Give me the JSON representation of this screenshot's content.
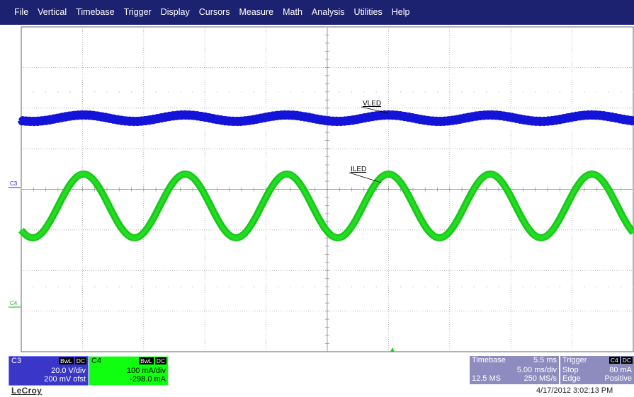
{
  "menu": [
    "File",
    "Vertical",
    "Timebase",
    "Trigger",
    "Display",
    "Cursors",
    "Measure",
    "Math",
    "Analysis",
    "Utilities",
    "Help"
  ],
  "traces": {
    "vled_label": "VLED",
    "iled_label": "ILED",
    "vled_color": "#1414d8",
    "iled_color": "#18c818"
  },
  "channels": {
    "c3": {
      "name": "C3",
      "marker": "C3",
      "bw": "BwL",
      "coupling": "DC",
      "scale": "20.0 V/div",
      "offset": "200 mV ofst",
      "color": "#3a36c8"
    },
    "c4": {
      "name": "C4",
      "marker": "C4",
      "bw": "BwL",
      "coupling": "DC",
      "scale": "100 mA/div",
      "offset": "-298.0 mA",
      "color": "#10ff10"
    }
  },
  "timebase": {
    "label": "Timebase",
    "delay": "5.5 ms",
    "per_div": "5.00 ms/div",
    "samples": "12.5 MS",
    "rate": "250 MS/s"
  },
  "trigger": {
    "label": "Trigger",
    "source": "C4",
    "coupling": "DC",
    "mode": "Stop",
    "level": "80 mA",
    "type": "Edge",
    "slope": "Positive"
  },
  "brand": "LeCroy",
  "timestamp": "4/17/2012 3:02:13 PM"
}
